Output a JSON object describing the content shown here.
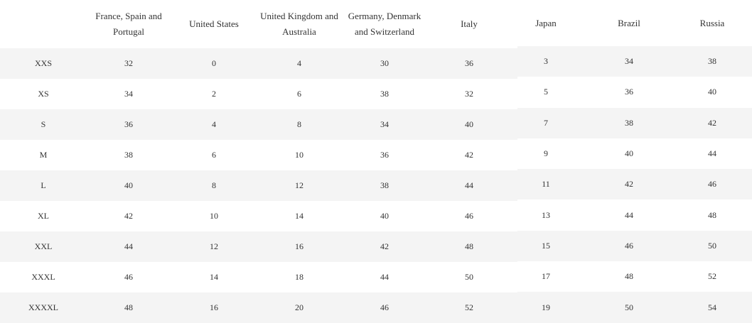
{
  "table": {
    "columns": [
      "France, Spain and Portugal",
      "United States",
      "United Kingdom and Australia",
      "Germany, Denmark and Switzerland",
      "Italy",
      "Japan",
      "Brazil",
      "Russia"
    ],
    "rows": [
      {
        "size": "XXS",
        "values": [
          32,
          0,
          4,
          30,
          36,
          3,
          34,
          38
        ]
      },
      {
        "size": "XS",
        "values": [
          34,
          2,
          6,
          38,
          32,
          5,
          36,
          40
        ]
      },
      {
        "size": "S",
        "values": [
          36,
          4,
          8,
          34,
          40,
          7,
          38,
          42
        ]
      },
      {
        "size": "M",
        "values": [
          38,
          6,
          10,
          36,
          42,
          9,
          40,
          44
        ]
      },
      {
        "size": "L",
        "values": [
          40,
          8,
          12,
          38,
          44,
          11,
          42,
          46
        ]
      },
      {
        "size": "XL",
        "values": [
          42,
          10,
          14,
          40,
          46,
          13,
          44,
          48
        ]
      },
      {
        "size": "XXL",
        "values": [
          44,
          12,
          16,
          42,
          48,
          15,
          46,
          50
        ]
      },
      {
        "size": "XXXL",
        "values": [
          46,
          14,
          18,
          44,
          50,
          17,
          48,
          52
        ]
      },
      {
        "size": "XXXXL",
        "values": [
          48,
          16,
          20,
          46,
          52,
          19,
          50,
          54
        ]
      }
    ]
  }
}
